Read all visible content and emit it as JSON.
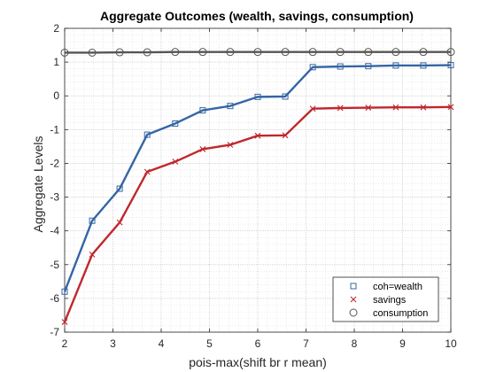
{
  "chart_data": {
    "type": "line",
    "title": "Aggregate Outcomes (wealth, savings, consumption)",
    "xlabel": "pois-max(shift br r mean)",
    "ylabel": "Aggregate Levels",
    "xlim": [
      2,
      10
    ],
    "ylim": [
      -7,
      2
    ],
    "xticks": [
      "2",
      "3",
      "4",
      "5",
      "6",
      "7",
      "8",
      "9",
      "10"
    ],
    "yticks": [
      "-7",
      "-6",
      "-5",
      "-4",
      "-3",
      "-2",
      "-1",
      "0",
      "1",
      "2"
    ],
    "grid": "minor dotted",
    "legend_position": "bottom-right",
    "x": [
      2.0,
      2.57,
      3.14,
      3.71,
      4.29,
      4.86,
      5.43,
      6.0,
      6.57,
      7.14,
      7.71,
      8.29,
      8.86,
      9.43,
      10.0
    ],
    "series": [
      {
        "name": "coh=wealth",
        "marker": "square",
        "color": "#3465a4",
        "values": [
          -5.8,
          -3.7,
          -2.75,
          -1.15,
          -0.82,
          -0.43,
          -0.3,
          -0.03,
          -0.02,
          0.85,
          0.87,
          0.88,
          0.9,
          0.9,
          0.91
        ]
      },
      {
        "name": "savings",
        "marker": "x",
        "color": "#c0272d",
        "values": [
          -6.7,
          -4.7,
          -3.75,
          -2.25,
          -1.95,
          -1.58,
          -1.45,
          -1.18,
          -1.17,
          -0.38,
          -0.36,
          -0.35,
          -0.34,
          -0.34,
          -0.33
        ]
      },
      {
        "name": "consumption",
        "marker": "circle",
        "color": "#555555",
        "values": [
          1.28,
          1.28,
          1.29,
          1.29,
          1.3,
          1.3,
          1.3,
          1.3,
          1.3,
          1.3,
          1.3,
          1.3,
          1.3,
          1.3,
          1.3
        ]
      }
    ]
  }
}
